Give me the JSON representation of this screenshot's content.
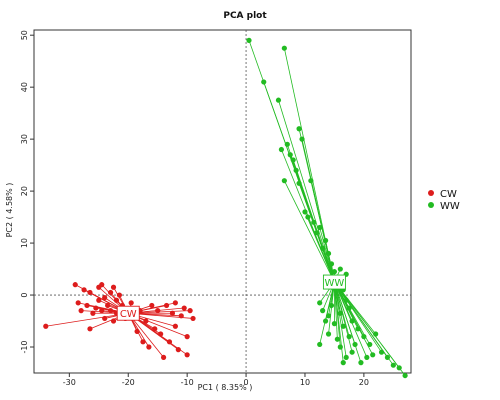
{
  "chart_data": {
    "type": "scatter",
    "title": "PCA plot",
    "xlabel": "PC1 ( 8.35% )",
    "ylabel": "PC2 ( 4.58% )",
    "xlim": [
      -36,
      28
    ],
    "ylim": [
      -15,
      51
    ],
    "xticks": [
      -30,
      -20,
      -10,
      0,
      10,
      20
    ],
    "yticks": [
      -10,
      0,
      10,
      20,
      30,
      40,
      50
    ],
    "reference_lines": {
      "x": 0,
      "y": 0,
      "style": "dashed"
    },
    "grid": false,
    "legend_position": "right",
    "series": [
      {
        "name": "CW",
        "color": "#dd1c1c",
        "centroid": {
          "label": "CW",
          "x": -20,
          "y": -3.5
        },
        "points": [
          [
            -34.0,
            -6.0
          ],
          [
            -29.0,
            2.0
          ],
          [
            -28.5,
            -1.5
          ],
          [
            -28.0,
            -3.0
          ],
          [
            -27.5,
            1.0
          ],
          [
            -27.0,
            -2.0
          ],
          [
            -26.5,
            0.5
          ],
          [
            -26.0,
            -3.5
          ],
          [
            -26.5,
            -6.5
          ],
          [
            -25.5,
            -2.5
          ],
          [
            -25.0,
            -1.0
          ],
          [
            -25.0,
            1.5
          ],
          [
            -24.5,
            -3.0
          ],
          [
            -24.5,
            2.0
          ],
          [
            -24.0,
            -0.5
          ],
          [
            -24.0,
            -4.5
          ],
          [
            -23.5,
            -2.0
          ],
          [
            -23.0,
            0.5
          ],
          [
            -23.0,
            -3.0
          ],
          [
            -22.5,
            1.5
          ],
          [
            -22.5,
            -5.0
          ],
          [
            -22.0,
            -1.0
          ],
          [
            -22.0,
            -3.5
          ],
          [
            -21.5,
            0.0
          ],
          [
            -21.0,
            -2.0
          ],
          [
            -20.5,
            -4.5
          ],
          [
            -19.5,
            -1.5
          ],
          [
            -18.5,
            -7.0
          ],
          [
            -18.0,
            -3.0
          ],
          [
            -17.5,
            -9.0
          ],
          [
            -17.0,
            -5.0
          ],
          [
            -16.5,
            -10.0
          ],
          [
            -16.0,
            -2.0
          ],
          [
            -15.5,
            -6.5
          ],
          [
            -15.0,
            -3.0
          ],
          [
            -14.5,
            -7.5
          ],
          [
            -14.0,
            -12.0
          ],
          [
            -13.5,
            -2.0
          ],
          [
            -13.0,
            -9.0
          ],
          [
            -12.5,
            -3.5
          ],
          [
            -12.0,
            -1.5
          ],
          [
            -12.0,
            -6.0
          ],
          [
            -11.5,
            -10.5
          ],
          [
            -11.0,
            -4.0
          ],
          [
            -10.5,
            -2.5
          ],
          [
            -10.0,
            -8.0
          ],
          [
            -10.0,
            -11.5
          ],
          [
            -9.5,
            -3.0
          ],
          [
            -9.0,
            -4.5
          ]
        ]
      },
      {
        "name": "WW",
        "color": "#22bb22",
        "centroid": {
          "label": "WW",
          "x": 15,
          "y": 2.5
        },
        "points": [
          [
            0.5,
            49.0
          ],
          [
            3.0,
            41.0
          ],
          [
            6.5,
            47.5
          ],
          [
            5.5,
            37.5
          ],
          [
            6.0,
            28.0
          ],
          [
            6.5,
            22.0
          ],
          [
            7.0,
            29.0
          ],
          [
            7.5,
            27.0
          ],
          [
            8.0,
            26.0
          ],
          [
            8.5,
            24.0
          ],
          [
            9.0,
            32.0
          ],
          [
            9.0,
            21.5
          ],
          [
            9.5,
            30.0
          ],
          [
            10.0,
            16.0
          ],
          [
            10.5,
            15.0
          ],
          [
            11.0,
            22.0
          ],
          [
            11.5,
            14.0
          ],
          [
            12.0,
            12.0
          ],
          [
            12.5,
            13.0
          ],
          [
            13.0,
            9.0
          ],
          [
            13.5,
            10.5
          ],
          [
            14.0,
            8.0
          ],
          [
            14.5,
            6.0
          ],
          [
            15.0,
            4.5
          ],
          [
            15.5,
            3.0
          ],
          [
            16.0,
            5.0
          ],
          [
            16.5,
            1.0
          ],
          [
            17.0,
            4.0
          ],
          [
            17.0,
            -1.0
          ],
          [
            14.5,
            -2.0
          ],
          [
            12.5,
            -1.5
          ],
          [
            13.0,
            -3.0
          ],
          [
            14.0,
            -4.0
          ],
          [
            15.0,
            -5.5
          ],
          [
            16.0,
            -3.5
          ],
          [
            16.5,
            -6.0
          ],
          [
            17.5,
            -2.5
          ],
          [
            17.5,
            -8.0
          ],
          [
            18.0,
            -5.0
          ],
          [
            18.5,
            -9.5
          ],
          [
            19.0,
            -6.5
          ],
          [
            20.0,
            -8.0
          ],
          [
            20.5,
            -12.0
          ],
          [
            21.0,
            -9.5
          ],
          [
            21.5,
            -11.5
          ],
          [
            22.0,
            -7.5
          ],
          [
            23.0,
            -11.0
          ],
          [
            24.0,
            -12.0
          ],
          [
            25.0,
            -13.5
          ],
          [
            26.0,
            -14.0
          ],
          [
            27.0,
            -15.5
          ],
          [
            16.0,
            -10.0
          ],
          [
            17.0,
            -12.0
          ],
          [
            18.0,
            -11.0
          ],
          [
            19.5,
            -13.0
          ],
          [
            12.5,
            -9.5
          ],
          [
            14.0,
            -7.5
          ],
          [
            15.5,
            -8.5
          ],
          [
            13.5,
            -5.0
          ],
          [
            16.5,
            -13.0
          ]
        ]
      }
    ]
  }
}
